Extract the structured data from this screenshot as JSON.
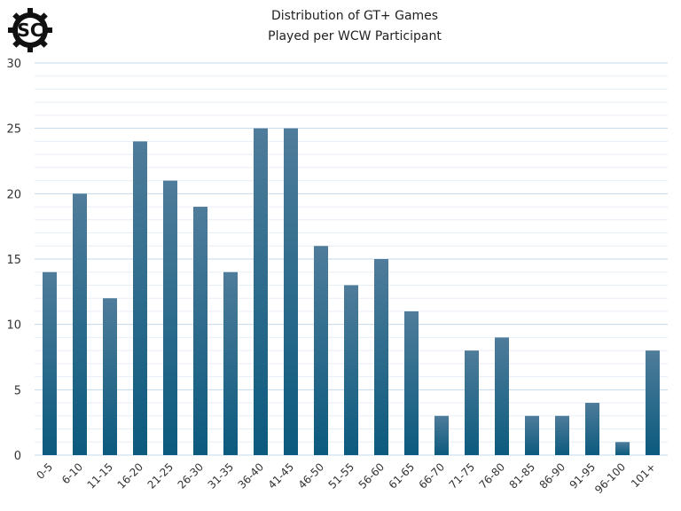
{
  "chart_data": {
    "type": "bar",
    "title": "Distribution of GT+ Games",
    "subtitle": "Played per WCW Participant",
    "xlabel": "",
    "ylabel": "",
    "categories": [
      "0-5",
      "6-10",
      "11-15",
      "16-20",
      "21-25",
      "26-30",
      "31-35",
      "36-40",
      "41-45",
      "46-50",
      "51-55",
      "56-60",
      "61-65",
      "66-70",
      "71-75",
      "76-80",
      "81-85",
      "86-90",
      "91-95",
      "96-100",
      "101+"
    ],
    "values": [
      14,
      20,
      12,
      24,
      21,
      19,
      14,
      25,
      25,
      16,
      13,
      15,
      11,
      3,
      8,
      9,
      3,
      3,
      4,
      1,
      8
    ],
    "ylim": [
      0,
      30
    ],
    "yticks": [
      0,
      5,
      10,
      15,
      20,
      25,
      30
    ],
    "grid": true,
    "bar_color_top": "#4f7c9a",
    "bar_color_bottom": "#0b5a7e"
  },
  "logo": {
    "text": "SC"
  }
}
